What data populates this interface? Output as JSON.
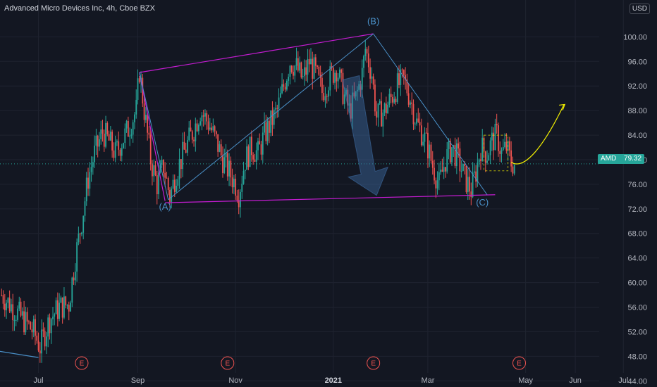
{
  "header": {
    "title": "Advanced Micro Devices Inc, 4h, Cboe BZX",
    "currency": "USD"
  },
  "price_tag": {
    "symbol": "AMD",
    "value": "79.32"
  },
  "colors": {
    "background": "#131722",
    "grid": "#1f2330",
    "up_candle": "#26a69a",
    "down_candle": "#ef5350",
    "channel_lines": "#c41cd1",
    "wave_lines": "#4a90c8",
    "forecast_curve": "#f4f100",
    "earnings_marker": "#ef5350",
    "arrow": "#3d6da3"
  },
  "chart_data": {
    "type": "candlestick",
    "title": "Advanced Micro Devices Inc, 4h, Cboe BZX",
    "xlabel": "",
    "ylabel": "",
    "y_range": [
      43,
      106
    ],
    "x_range": [
      "2020-06-07",
      "2021-07-22"
    ],
    "x_ticks": [
      {
        "label": "Jul",
        "date": "2020-07-01"
      },
      {
        "label": "Sep",
        "date": "2020-09-01"
      },
      {
        "label": "Nov",
        "date": "2020-11-01"
      },
      {
        "label": "2021",
        "date": "2021-01-01"
      },
      {
        "label": "Mar",
        "date": "2021-03-01"
      },
      {
        "label": "May",
        "date": "2021-05-01"
      },
      {
        "label": "Jun",
        "date": "2021-06-01"
      },
      {
        "label": "Jul",
        "date": "2021-07-01"
      }
    ],
    "y_ticks": [
      "44.00",
      "48.00",
      "52.00",
      "56.00",
      "60.00",
      "64.00",
      "68.00",
      "72.00",
      "76.00",
      "80.00",
      "84.00",
      "88.00",
      "92.00",
      "96.00",
      "100.00"
    ],
    "last_price": 79.32,
    "grid": true,
    "price_path": [
      [
        "2020-06-08",
        58.0
      ],
      [
        "2020-06-18",
        55.0
      ],
      [
        "2020-06-28",
        52.0
      ],
      [
        "2020-07-02",
        49.5
      ],
      [
        "2020-07-08",
        54.0
      ],
      [
        "2020-07-14",
        56.0
      ],
      [
        "2020-07-20",
        56.5
      ],
      [
        "2020-07-24",
        64.0
      ],
      [
        "2020-07-28",
        70.0
      ],
      [
        "2020-08-01",
        77.0
      ],
      [
        "2020-08-05",
        81.0
      ],
      [
        "2020-08-10",
        84.5
      ],
      [
        "2020-08-14",
        83.0
      ],
      [
        "2020-08-18",
        81.0
      ],
      [
        "2020-08-22",
        83.0
      ],
      [
        "2020-08-26",
        85.0
      ],
      [
        "2020-08-31",
        88.0
      ],
      [
        "2020-09-02",
        94.5
      ],
      [
        "2020-09-05",
        88.0
      ],
      [
        "2020-09-09",
        80.0
      ],
      [
        "2020-09-13",
        76.0
      ],
      [
        "2020-09-17",
        79.0
      ],
      [
        "2020-09-21",
        74.0
      ],
      [
        "2020-09-25",
        78.0
      ],
      [
        "2020-10-01",
        82.0
      ],
      [
        "2020-10-06",
        85.0
      ],
      [
        "2020-10-10",
        88.0
      ],
      [
        "2020-10-15",
        86.0
      ],
      [
        "2020-10-20",
        83.0
      ],
      [
        "2020-10-24",
        80.0
      ],
      [
        "2020-10-28",
        78.0
      ],
      [
        "2020-11-01",
        76.0
      ],
      [
        "2020-11-03",
        74.5
      ],
      [
        "2020-11-07",
        80.0
      ],
      [
        "2020-11-11",
        82.0
      ],
      [
        "2020-11-15",
        81.0
      ],
      [
        "2020-11-19",
        84.0
      ],
      [
        "2020-11-23",
        86.0
      ],
      [
        "2020-11-27",
        88.0
      ],
      [
        "2020-12-01",
        92.0
      ],
      [
        "2020-12-05",
        96.0
      ],
      [
        "2020-12-09",
        95.0
      ],
      [
        "2020-12-13",
        93.0
      ],
      [
        "2020-12-17",
        96.0
      ],
      [
        "2020-12-21",
        94.0
      ],
      [
        "2020-12-25",
        91.0
      ],
      [
        "2020-12-29",
        93.0
      ],
      [
        "2021-01-03",
        95.0
      ],
      [
        "2021-01-07",
        91.0
      ],
      [
        "2021-01-11",
        88.0
      ],
      [
        "2021-01-15",
        90.0
      ],
      [
        "2021-01-19",
        94.0
      ],
      [
        "2021-01-21",
        98.0
      ],
      [
        "2021-01-25",
        94.0
      ],
      [
        "2021-01-28",
        87.0
      ],
      [
        "2021-02-02",
        88.0
      ],
      [
        "2021-02-06",
        90.0
      ],
      [
        "2021-02-10",
        92.0
      ],
      [
        "2021-02-14",
        93.0
      ],
      [
        "2021-02-18",
        90.0
      ],
      [
        "2021-02-22",
        86.0
      ],
      [
        "2021-02-26",
        84.0
      ],
      [
        "2021-03-01",
        82.0
      ],
      [
        "2021-03-04",
        79.0
      ],
      [
        "2021-03-08",
        76.0
      ],
      [
        "2021-03-12",
        80.0
      ],
      [
        "2021-03-16",
        82.0
      ],
      [
        "2021-03-20",
        80.0
      ],
      [
        "2021-03-24",
        77.0
      ],
      [
        "2021-03-28",
        75.0
      ],
      [
        "2021-03-31",
        78.0
      ],
      [
        "2021-04-03",
        82.0
      ],
      [
        "2021-04-07",
        81.0
      ],
      [
        "2021-04-10",
        83.0
      ],
      [
        "2021-04-13",
        84.0
      ],
      [
        "2021-04-16",
        81.0
      ],
      [
        "2021-04-19",
        82.0
      ],
      [
        "2021-04-22",
        79.5
      ],
      [
        "2021-04-24",
        79.3
      ]
    ],
    "wave_labels": [
      {
        "label": "(A)",
        "date": "2020-09-18",
        "price": 72.3
      },
      {
        "label": "(B)",
        "date": "2021-01-26",
        "price": 102.5
      },
      {
        "label": "(C)",
        "date": "2021-04-04",
        "price": 73.0
      }
    ],
    "earnings_markers": [
      {
        "label": "E",
        "date": "2020-07-28"
      },
      {
        "label": "E",
        "date": "2020-10-27"
      },
      {
        "label": "E",
        "date": "2021-01-26"
      },
      {
        "label": "E",
        "date": "2021-04-27"
      }
    ]
  }
}
